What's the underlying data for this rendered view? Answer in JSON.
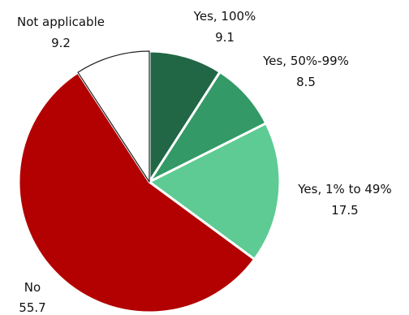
{
  "chart_data": {
    "type": "pie",
    "title": "",
    "slices": [
      {
        "label": "Yes, 100%",
        "value": 9.1,
        "value_text": "9.1",
        "color": "#216645"
      },
      {
        "label": "Yes, 50%-99%",
        "value": 8.5,
        "value_text": "8.5",
        "color": "#339966"
      },
      {
        "label": "Yes, 1% to 49%",
        "value": 17.5,
        "value_text": "17.5",
        "color": "#5ecb94"
      },
      {
        "label": "No",
        "value": 55.7,
        "value_text": "55.7",
        "color": "#b30000"
      },
      {
        "label": "Not applicable",
        "value": 9.2,
        "value_text": "9.2",
        "color": "#ffffff"
      }
    ],
    "start": "12 o'clock",
    "direction": "clockwise",
    "slice_border_color": "#ffffff",
    "outline_color": "#222222",
    "legend": "none"
  }
}
